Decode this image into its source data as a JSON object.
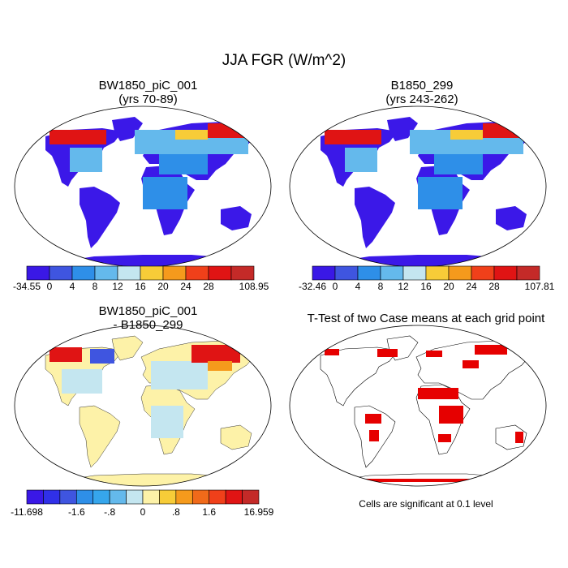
{
  "main_title": "JJA FGR (W/m^2)",
  "panels": {
    "top_left": {
      "title": "BW1850_piC_001",
      "subtitle": "(yrs 70-89)"
    },
    "top_right": {
      "title": "B1850_299",
      "subtitle": "(yrs 243-262)"
    },
    "bottom_left": {
      "title": "BW1850_piC_001",
      "subtitle": "- B1850_299"
    },
    "bottom_right": {
      "title": "T-Test of two Case means at each grid point",
      "note": "Cells are significant at 0.1 level"
    }
  },
  "colorbars": {
    "top_left": {
      "colors": [
        "#3a18e6",
        "#3f55e0",
        "#2e8fe8",
        "#64b9ec",
        "#c4e6f0",
        "#f7cc38",
        "#f59a1c",
        "#f0401a",
        "#e01414",
        "#c42a28"
      ],
      "labels": [
        "-34.55",
        "0",
        "4",
        "8",
        "12",
        "16",
        "20",
        "24",
        "28",
        "108.95"
      ]
    },
    "top_right": {
      "colors": [
        "#3a18e6",
        "#3f55e0",
        "#2e8fe8",
        "#64b9ec",
        "#c4e6f0",
        "#f7cc38",
        "#f59a1c",
        "#f0401a",
        "#e01414",
        "#c42a28"
      ],
      "labels": [
        "-32.46",
        "0",
        "4",
        "8",
        "12",
        "16",
        "20",
        "24",
        "28",
        "107.81"
      ]
    },
    "bottom_left": {
      "colors": [
        "#3a18e6",
        "#3030e8",
        "#3f55e0",
        "#2e8fe8",
        "#36a6ec",
        "#64b9ec",
        "#c4e6f0",
        "#fdf2a8",
        "#f7cc38",
        "#f59a1c",
        "#f06a1a",
        "#f0401a",
        "#e01414",
        "#c42a28"
      ],
      "labels": [
        "-11.698",
        "-1.6",
        "-.8",
        "0",
        ".8",
        "1.6",
        "16.959"
      ]
    }
  },
  "significance_color": "#e60000"
}
